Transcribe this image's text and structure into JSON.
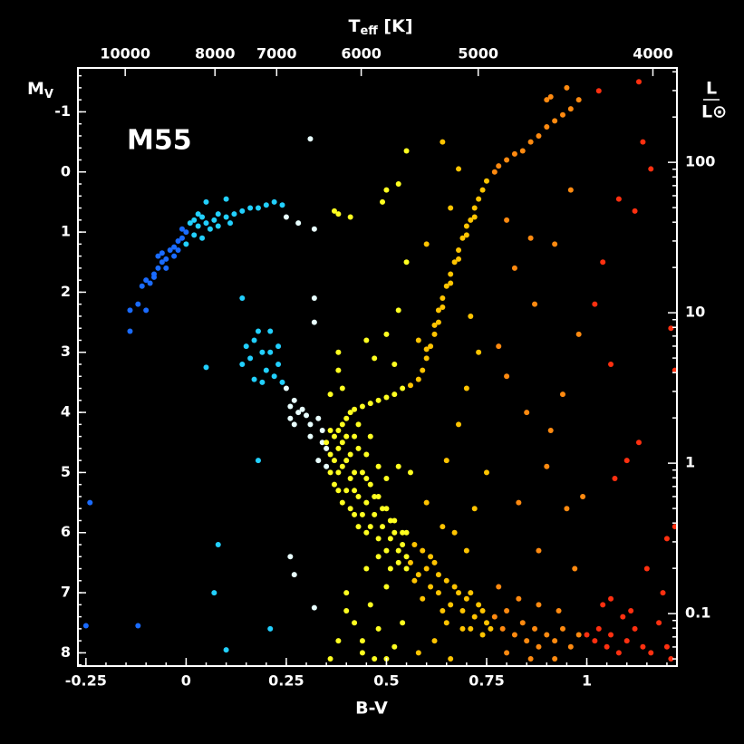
{
  "chart_data": {
    "type": "scatter",
    "annotation": "M55",
    "xlabel": "B-V",
    "ylabel": {
      "text": "M",
      "subscript": "V"
    },
    "x2label": {
      "text": "T",
      "subscript": "eff",
      "suffix": " [K]"
    },
    "y2label": {
      "numerator": "L",
      "denominator": "L⊙"
    },
    "xlim": [
      -0.27,
      1.225
    ],
    "xticks": [
      -0.25,
      0,
      0.25,
      0.5,
      0.75,
      1
    ],
    "ylim": [
      8.22,
      -1.73
    ],
    "yticks": [
      -1,
      0,
      1,
      2,
      3,
      4,
      5,
      6,
      7,
      8
    ],
    "y2lim": [
      0.0448,
      424
    ],
    "y2ticks": [
      0.1,
      1,
      10,
      100
    ],
    "y2log": true,
    "x2ticks": [
      10000,
      8000,
      7000,
      6000,
      5000,
      4000
    ],
    "x2ticks_at": [
      -0.152,
      0.072,
      0.226,
      0.437,
      0.729,
      1.165
    ],
    "background": "#000000",
    "series": [
      {
        "color": "#1a6bff",
        "x": [
          -0.24,
          -0.25,
          -0.12,
          -0.14,
          -0.14,
          -0.12,
          -0.1,
          -0.11,
          -0.1,
          -0.09,
          -0.08,
          -0.07,
          -0.06,
          -0.07,
          -0.05,
          -0.04,
          -0.03,
          -0.03,
          -0.02,
          -0.01,
          -0.02,
          0,
          -0.01,
          -0.08,
          -0.06,
          -0.05
        ],
        "values": [
          5.5,
          7.55,
          7.55,
          2.65,
          2.3,
          2.2,
          2.3,
          1.9,
          1.8,
          1.85,
          1.7,
          1.6,
          1.5,
          1.4,
          1.45,
          1.3,
          1.25,
          1.4,
          1.15,
          1.1,
          1.3,
          1.0,
          0.95,
          1.75,
          1.35,
          1.6
        ]
      },
      {
        "color": "#22d0ff",
        "x": [
          0.01,
          0.02,
          0.03,
          0.04,
          0.05,
          0.06,
          0.07,
          0.08,
          0.1,
          0.12,
          0.14,
          0.16,
          0.18,
          0.2,
          0.22,
          0.24,
          0.1,
          0.05,
          0.08,
          0.11,
          0.02,
          0.04,
          0.0,
          0.03,
          0.14,
          0.15,
          0.16,
          0.17,
          0.18,
          0.19,
          0.2,
          0.21,
          0.22,
          0.23,
          0.24,
          0.17,
          0.19,
          0.21,
          0.23,
          0.05,
          0.14,
          0.08,
          0.07,
          0.1,
          0.18,
          0.21
        ],
        "values": [
          0.85,
          0.8,
          0.9,
          0.75,
          0.85,
          0.95,
          0.8,
          0.7,
          0.75,
          0.7,
          0.65,
          0.6,
          0.6,
          0.55,
          0.5,
          0.55,
          0.45,
          0.5,
          0.9,
          0.85,
          1.05,
          1.1,
          1.2,
          0.7,
          3.2,
          2.9,
          3.1,
          2.8,
          2.65,
          3.0,
          3.3,
          3.0,
          3.4,
          3.2,
          3.5,
          3.45,
          3.5,
          2.65,
          2.9,
          3.25,
          2.1,
          6.2,
          7.0,
          7.95,
          4.8,
          7.6
        ]
      },
      {
        "color": "#e8ffff",
        "x": [
          0.25,
          0.26,
          0.27,
          0.28,
          0.29,
          0.3,
          0.31,
          0.27,
          0.26,
          0.25,
          0.28,
          0.32,
          0.32,
          0.32,
          0.31,
          0.33,
          0.34,
          0.35,
          0.34,
          0.33,
          0.35,
          0.26,
          0.27,
          0.32,
          0.31
        ],
        "values": [
          3.6,
          4.1,
          4.2,
          4.0,
          3.95,
          4.05,
          4.2,
          3.8,
          3.9,
          0.75,
          0.85,
          2.1,
          2.5,
          0.95,
          4.4,
          4.1,
          4.3,
          4.6,
          4.5,
          4.8,
          4.9,
          6.4,
          6.7,
          7.25,
          -0.55
        ]
      },
      {
        "color": "#ffff20",
        "x": [
          0.36,
          0.37,
          0.38,
          0.37,
          0.38,
          0.39,
          0.4,
          0.41,
          0.42,
          0.44,
          0.46,
          0.48,
          0.5,
          0.52,
          0.54,
          0.39,
          0.4,
          0.41,
          0.42,
          0.43,
          0.44,
          0.45,
          0.46,
          0.47,
          0.48,
          0.49,
          0.5,
          0.51,
          0.52,
          0.53,
          0.54,
          0.55,
          0.42,
          0.45,
          0.48,
          0.5,
          0.38,
          0.39,
          0.36,
          0.37,
          0.38,
          0.41,
          0.38,
          0.45,
          0.5,
          0.52,
          0.47,
          0.55,
          0.53,
          0.4,
          0.38,
          0.42,
          0.44,
          0.46,
          0.48,
          0.5,
          0.52,
          0.36,
          0.4,
          0.44,
          0.47,
          0.54,
          0.45,
          0.5,
          0.55,
          0.49,
          0.5,
          0.53,
          0.55,
          0.38,
          0.41,
          0.43,
          0.53,
          0.56,
          0.35,
          0.36,
          0.36,
          0.37,
          0.38,
          0.39,
          0.4,
          0.4,
          0.41,
          0.42,
          0.43,
          0.44,
          0.45,
          0.46,
          0.47,
          0.48,
          0.49,
          0.5,
          0.51,
          0.52,
          0.53,
          0.54,
          0.55,
          0.43,
          0.46,
          0.39,
          0.42,
          0.45,
          0.48,
          0.51
        ],
        "values": [
          4.3,
          4.4,
          4.6,
          4.8,
          5.0,
          4.2,
          4.1,
          4.0,
          3.95,
          3.9,
          3.85,
          3.8,
          3.75,
          3.7,
          3.6,
          4.5,
          4.8,
          5.1,
          5.3,
          4.6,
          5.0,
          5.5,
          5.2,
          5.7,
          5.4,
          5.9,
          5.6,
          6.1,
          5.8,
          6.3,
          6.0,
          6.4,
          4.4,
          4.7,
          4.9,
          5.1,
          3.0,
          3.6,
          3.7,
          0.65,
          0.7,
          0.75,
          3.3,
          2.8,
          2.7,
          3.2,
          3.1,
          1.5,
          2.3,
          7.0,
          7.8,
          7.5,
          8.0,
          7.2,
          7.6,
          8.1,
          7.9,
          8.1,
          7.3,
          7.8,
          8.1,
          7.5,
          6.6,
          6.9,
          6.6,
          0.5,
          0.3,
          0.2,
          -0.35,
          5.3,
          5.6,
          5.9,
          4.9,
          5.0,
          4.5,
          4.7,
          5.0,
          5.2,
          4.3,
          4.9,
          5.3,
          4.4,
          4.7,
          5.0,
          5.4,
          5.7,
          5.1,
          5.9,
          5.4,
          6.1,
          5.6,
          6.3,
          5.8,
          6.0,
          6.5,
          6.2,
          6.0,
          4.2,
          4.4,
          5.5,
          5.7,
          6.0,
          6.4,
          6.6
        ]
      },
      {
        "color": "#ffc400",
        "x": [
          0.56,
          0.58,
          0.59,
          0.6,
          0.61,
          0.62,
          0.63,
          0.63,
          0.64,
          0.65,
          0.66,
          0.67,
          0.68,
          0.69,
          0.7,
          0.71,
          0.72,
          0.73,
          0.74,
          0.75,
          0.6,
          0.62,
          0.64,
          0.66,
          0.68,
          0.7,
          0.72,
          0.56,
          0.57,
          0.58,
          0.6,
          0.61,
          0.62,
          0.63,
          0.65,
          0.66,
          0.68,
          0.69,
          0.7,
          0.72,
          0.73,
          0.75,
          0.74,
          0.71,
          0.58,
          0.62,
          0.66,
          0.6,
          0.64,
          0.67,
          0.7,
          0.72,
          0.65,
          0.68,
          0.7,
          0.73,
          0.6,
          0.66,
          0.58,
          0.71,
          0.75,
          0.64,
          0.68,
          0.57,
          0.59,
          0.61,
          0.63,
          0.64,
          0.67,
          0.69,
          0.71,
          0.74,
          0.76,
          0.59,
          0.65
        ],
        "values": [
          3.55,
          3.45,
          3.3,
          3.1,
          2.9,
          2.7,
          2.5,
          2.3,
          2.1,
          1.9,
          1.7,
          1.5,
          1.3,
          1.1,
          0.9,
          0.8,
          0.6,
          0.45,
          0.3,
          0.15,
          2.95,
          2.55,
          2.25,
          1.85,
          1.45,
          1.05,
          0.75,
          6.5,
          6.2,
          6.7,
          6.6,
          6.9,
          6.5,
          7.0,
          6.8,
          7.2,
          7.0,
          7.3,
          7.1,
          7.4,
          7.2,
          7.5,
          7.7,
          7.6,
          8.0,
          7.8,
          8.1,
          5.5,
          5.9,
          6.0,
          6.3,
          5.6,
          4.8,
          4.2,
          3.6,
          3.0,
          1.2,
          0.6,
          2.8,
          2.4,
          5.0,
          -0.5,
          -0.05,
          6.8,
          7.1,
          6.4,
          6.7,
          7.3,
          6.9,
          7.6,
          7.0,
          7.3,
          7.6,
          6.3,
          7.5
        ]
      },
      {
        "color": "#ff8a10",
        "x": [
          0.77,
          0.78,
          0.8,
          0.82,
          0.84,
          0.86,
          0.88,
          0.9,
          0.92,
          0.94,
          0.96,
          0.98,
          0.91,
          0.95,
          0.9,
          0.77,
          0.79,
          0.8,
          0.82,
          0.84,
          0.85,
          0.87,
          0.88,
          0.9,
          0.92,
          0.94,
          0.96,
          0.98,
          0.8,
          0.86,
          0.92,
          0.78,
          0.83,
          0.88,
          0.93,
          0.8,
          0.85,
          0.9,
          0.95,
          0.83,
          0.78,
          0.82,
          0.92,
          0.96,
          0.87,
          0.99,
          0.97,
          0.94,
          0.88,
          0.91,
          0.8,
          0.86,
          0.98
        ],
        "values": [
          0.0,
          -0.1,
          -0.2,
          -0.3,
          -0.35,
          -0.5,
          -0.6,
          -0.75,
          -0.85,
          -0.95,
          -1.05,
          -1.2,
          -1.25,
          -1.4,
          -1.2,
          7.4,
          7.6,
          7.3,
          7.7,
          7.5,
          7.8,
          7.6,
          7.9,
          7.7,
          7.8,
          7.6,
          7.9,
          7.7,
          8.0,
          8.1,
          8.1,
          6.9,
          7.1,
          7.2,
          7.3,
          3.4,
          4.0,
          4.9,
          5.6,
          5.5,
          2.9,
          1.6,
          1.2,
          0.3,
          2.2,
          5.4,
          6.6,
          3.7,
          6.3,
          4.3,
          0.8,
          1.1,
          2.7
        ]
      },
      {
        "color": "#ff3010",
        "x": [
          1.0,
          1.02,
          1.03,
          1.05,
          1.06,
          1.08,
          1.1,
          1.12,
          1.14,
          1.16,
          1.18,
          1.2,
          1.21,
          1.04,
          1.09,
          1.15,
          1.22,
          1.2,
          1.22,
          1.21,
          1.19,
          1.07,
          1.1,
          1.13,
          1.06,
          1.04,
          1.08,
          1.14,
          1.13,
          1.16,
          1.12,
          1.03,
          1.06,
          1.11,
          1.02
        ],
        "values": [
          7.7,
          7.8,
          7.6,
          7.9,
          7.7,
          8.0,
          7.8,
          7.6,
          7.9,
          8.0,
          7.5,
          7.9,
          8.1,
          7.2,
          7.4,
          6.6,
          5.9,
          6.1,
          3.3,
          2.6,
          7.0,
          5.1,
          4.8,
          4.5,
          3.2,
          1.5,
          0.45,
          -0.5,
          -1.5,
          -0.05,
          0.65,
          -1.35,
          7.1,
          7.3,
          2.2
        ]
      }
    ]
  }
}
